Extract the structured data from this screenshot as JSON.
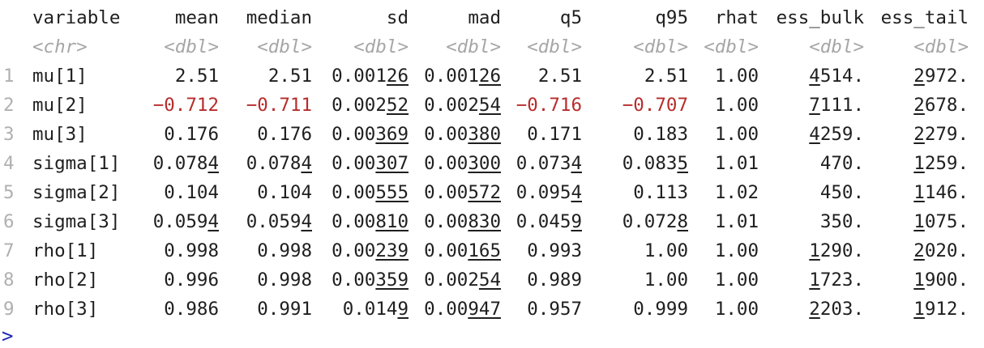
{
  "columns": [
    {
      "name": "variable",
      "type": "<chr>",
      "align": "left"
    },
    {
      "name": "mean",
      "type": "<dbl>",
      "align": "right"
    },
    {
      "name": "median",
      "type": "<dbl>",
      "align": "right"
    },
    {
      "name": "sd",
      "type": "<dbl>",
      "align": "right"
    },
    {
      "name": "mad",
      "type": "<dbl>",
      "align": "right"
    },
    {
      "name": "q5",
      "type": "<dbl>",
      "align": "right"
    },
    {
      "name": "q95",
      "type": "<dbl>",
      "align": "right"
    },
    {
      "name": "rhat",
      "type": "<dbl>",
      "align": "right"
    },
    {
      "name": "ess_bulk",
      "type": "<dbl>",
      "align": "right"
    },
    {
      "name": "ess_tail",
      "type": "<dbl>",
      "align": "right"
    }
  ],
  "rows": [
    {
      "num": "1",
      "cells": [
        {
          "t": "mu[1]"
        },
        {
          "t": "2.51"
        },
        {
          "t": "2.51"
        },
        {
          "t": "0.00126",
          "u": [
            5,
            7
          ]
        },
        {
          "t": "0.00126",
          "u": [
            5,
            7
          ]
        },
        {
          "t": "2.51"
        },
        {
          "t": "2.51"
        },
        {
          "t": "1.00"
        },
        {
          "t": "4514.",
          "u": [
            0,
            1
          ]
        },
        {
          "t": "2972.",
          "u": [
            0,
            1
          ]
        }
      ]
    },
    {
      "num": "2",
      "cells": [
        {
          "t": "mu[2]"
        },
        {
          "t": "−0.712",
          "neg": true
        },
        {
          "t": "−0.711",
          "neg": true
        },
        {
          "t": "0.00252",
          "u": [
            5,
            7
          ]
        },
        {
          "t": "0.00254",
          "u": [
            5,
            7
          ]
        },
        {
          "t": "−0.716",
          "neg": true
        },
        {
          "t": "−0.707",
          "neg": true
        },
        {
          "t": "1.00"
        },
        {
          "t": "7111.",
          "u": [
            0,
            1
          ]
        },
        {
          "t": "2678.",
          "u": [
            0,
            1
          ]
        }
      ]
    },
    {
      "num": "3",
      "cells": [
        {
          "t": "mu[3]"
        },
        {
          "t": "0.176"
        },
        {
          "t": "0.176"
        },
        {
          "t": "0.00369",
          "u": [
            4,
            7
          ]
        },
        {
          "t": "0.00380",
          "u": [
            4,
            7
          ]
        },
        {
          "t": "0.171"
        },
        {
          "t": "0.183"
        },
        {
          "t": "1.00"
        },
        {
          "t": "4259.",
          "u": [
            0,
            1
          ]
        },
        {
          "t": "2279.",
          "u": [
            0,
            1
          ]
        }
      ]
    },
    {
      "num": "4",
      "cells": [
        {
          "t": "sigma[1]"
        },
        {
          "t": "0.0784",
          "u": [
            5,
            6
          ]
        },
        {
          "t": "0.0784",
          "u": [
            5,
            6
          ]
        },
        {
          "t": "0.00307",
          "u": [
            4,
            7
          ]
        },
        {
          "t": "0.00300",
          "u": [
            4,
            7
          ]
        },
        {
          "t": "0.0734",
          "u": [
            5,
            6
          ]
        },
        {
          "t": "0.0835",
          "u": [
            5,
            6
          ]
        },
        {
          "t": "1.01"
        },
        {
          "t": "470."
        },
        {
          "t": "1259.",
          "u": [
            0,
            1
          ]
        }
      ]
    },
    {
      "num": "5",
      "cells": [
        {
          "t": "sigma[2]"
        },
        {
          "t": "0.104"
        },
        {
          "t": "0.104"
        },
        {
          "t": "0.00555",
          "u": [
            4,
            7
          ]
        },
        {
          "t": "0.00572",
          "u": [
            4,
            7
          ]
        },
        {
          "t": "0.0954",
          "u": [
            5,
            6
          ]
        },
        {
          "t": "0.113"
        },
        {
          "t": "1.02"
        },
        {
          "t": "450."
        },
        {
          "t": "1146.",
          "u": [
            0,
            1
          ]
        }
      ]
    },
    {
      "num": "6",
      "cells": [
        {
          "t": "sigma[3]"
        },
        {
          "t": "0.0594",
          "u": [
            5,
            6
          ]
        },
        {
          "t": "0.0594",
          "u": [
            5,
            6
          ]
        },
        {
          "t": "0.00810",
          "u": [
            4,
            7
          ]
        },
        {
          "t": "0.00830",
          "u": [
            4,
            7
          ]
        },
        {
          "t": "0.0459",
          "u": [
            5,
            6
          ]
        },
        {
          "t": "0.0728",
          "u": [
            5,
            6
          ]
        },
        {
          "t": "1.01"
        },
        {
          "t": "350."
        },
        {
          "t": "1075.",
          "u": [
            0,
            1
          ]
        }
      ]
    },
    {
      "num": "7",
      "cells": [
        {
          "t": "rho[1]"
        },
        {
          "t": "0.998"
        },
        {
          "t": "0.998"
        },
        {
          "t": "0.00239",
          "u": [
            4,
            7
          ]
        },
        {
          "t": "0.00165",
          "u": [
            4,
            7
          ]
        },
        {
          "t": "0.993"
        },
        {
          "t": "1.00"
        },
        {
          "t": "1.00"
        },
        {
          "t": "1290.",
          "u": [
            0,
            1
          ]
        },
        {
          "t": "2020.",
          "u": [
            0,
            1
          ]
        }
      ]
    },
    {
      "num": "8",
      "cells": [
        {
          "t": "rho[2]"
        },
        {
          "t": "0.996"
        },
        {
          "t": "0.998"
        },
        {
          "t": "0.00359",
          "u": [
            4,
            7
          ]
        },
        {
          "t": "0.00254",
          "u": [
            5,
            7
          ]
        },
        {
          "t": "0.989"
        },
        {
          "t": "1.00"
        },
        {
          "t": "1.00"
        },
        {
          "t": "1723.",
          "u": [
            0,
            1
          ]
        },
        {
          "t": "1900.",
          "u": [
            0,
            1
          ]
        }
      ]
    },
    {
      "num": "9",
      "cells": [
        {
          "t": "rho[3]"
        },
        {
          "t": "0.986"
        },
        {
          "t": "0.991"
        },
        {
          "t": "0.0149",
          "u": [
            5,
            6
          ]
        },
        {
          "t": "0.00947",
          "u": [
            4,
            7
          ]
        },
        {
          "t": "0.957"
        },
        {
          "t": "0.999"
        },
        {
          "t": "1.00"
        },
        {
          "t": "2203.",
          "u": [
            0,
            1
          ]
        },
        {
          "t": "1912.",
          "u": [
            0,
            1
          ]
        }
      ]
    }
  ],
  "prompt": ">",
  "colors": {
    "negative": "#b72c2c",
    "type_hint": "#a6a6a6",
    "row_number": "#b0b0b0",
    "prompt": "#1e28b4"
  }
}
